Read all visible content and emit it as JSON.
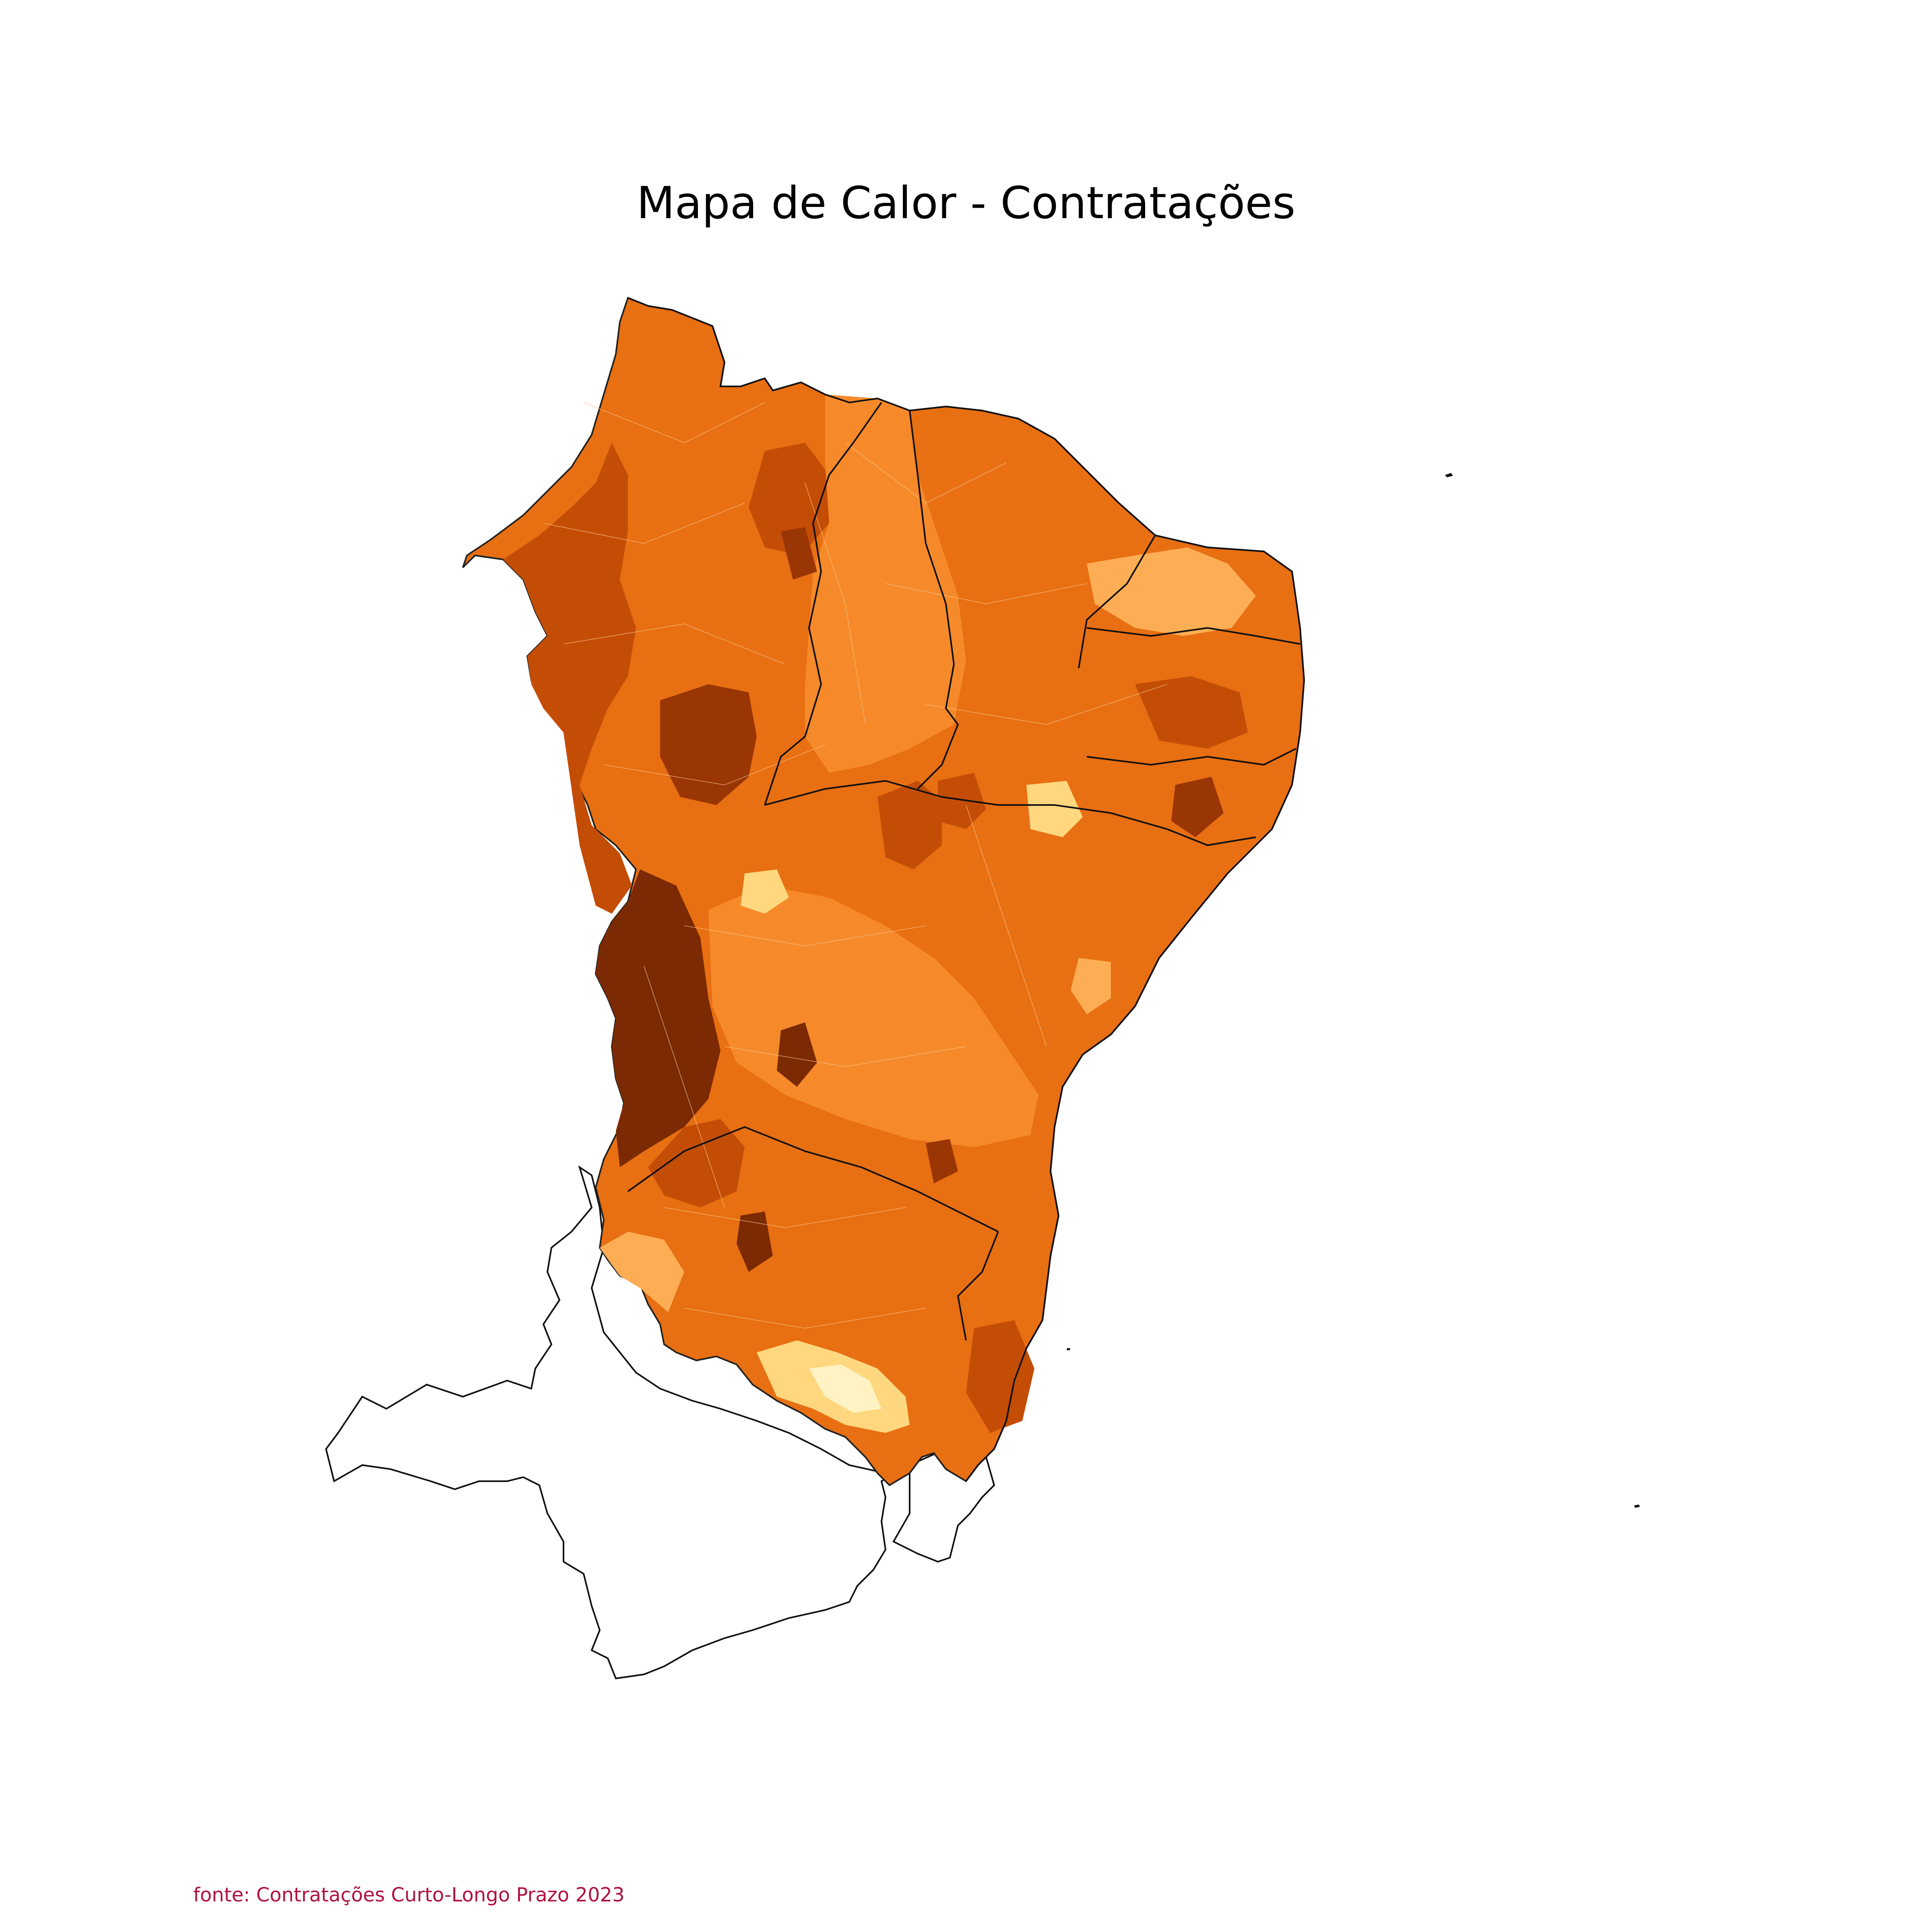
{
  "title": "Mapa de Calor - Contratações",
  "source": "fonte: Contratações Curto-Longo Prazo 2023",
  "colors": {
    "scale": [
      "#fff3c4",
      "#fed77f",
      "#fdae54",
      "#f68a2a",
      "#e3690f",
      "#c44d06",
      "#9a3504",
      "#7b2a03"
    ],
    "source_text": "#b0123f",
    "outline": "#111111",
    "background": "#ffffff"
  }
}
